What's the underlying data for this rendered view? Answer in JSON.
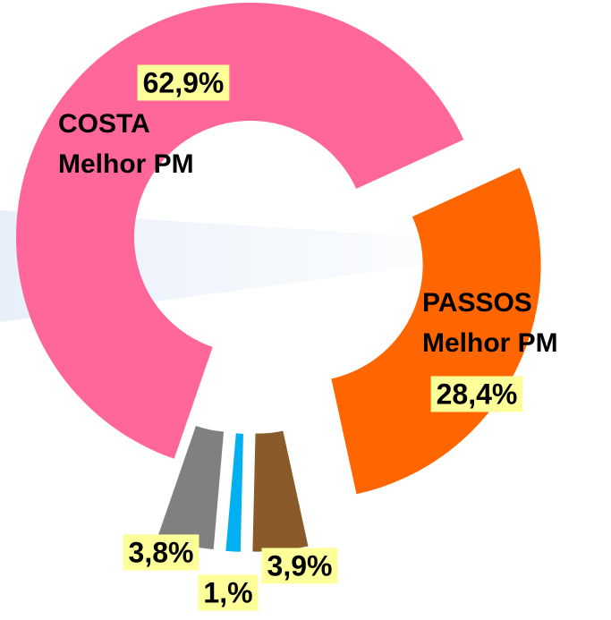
{
  "chart_data": {
    "type": "pie",
    "donut": true,
    "categories": [
      [
        "COSTA",
        "Melhor PM"
      ],
      [
        "PASSOS",
        "Melhor PM"
      ],
      null,
      null,
      null
    ],
    "values": [
      62.9,
      28.4,
      3.8,
      1.0,
      3.9
    ],
    "value_labels": [
      "62,9%",
      "28,4%",
      "3,8%",
      "1,%",
      "3,9%"
    ],
    "colors": [
      "#ff6699",
      "#ff6600",
      "#8b5a2b",
      "#00b0f0",
      "#808080"
    ]
  }
}
